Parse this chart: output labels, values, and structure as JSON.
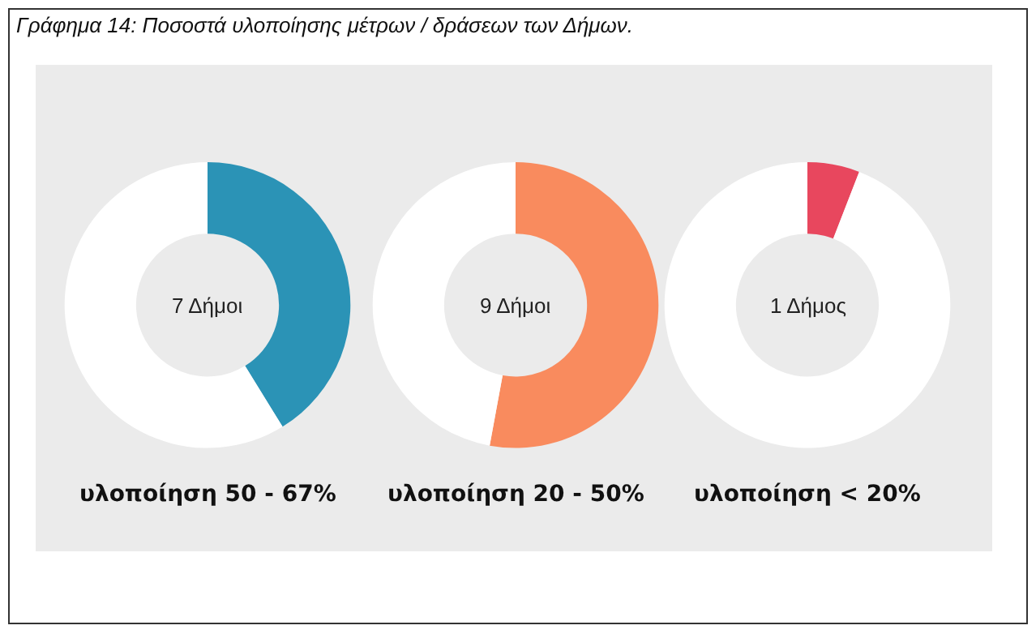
{
  "chart_data": [
    {
      "type": "donut",
      "title": "Γράφημα 14: Ποσοστά υλοποίησης μέτρων / δράσεων των Δήμων.",
      "categories": [
        null,
        null
      ],
      "values": [
        41.2,
        58.8
      ],
      "colors": [
        "#2b93b6",
        "#ffffff"
      ],
      "annotations": [
        "7 Δήμοι"
      ],
      "xlabel": "υλοποίηση 50 - 67%"
    },
    {
      "type": "donut",
      "categories": [
        null,
        null
      ],
      "values": [
        52.9,
        47.1
      ],
      "colors": [
        "#f98b5e",
        "#ffffff"
      ],
      "annotations": [
        "9 Δήμοι"
      ],
      "xlabel": "υλοποίηση 20 - 50%"
    },
    {
      "type": "donut",
      "categories": [
        null,
        null
      ],
      "values": [
        5.9,
        94.1
      ],
      "colors": [
        "#e8475e",
        "#ffffff"
      ],
      "annotations": [
        "1 Δήμος"
      ],
      "xlabel": "υλοποίηση < 20%"
    }
  ]
}
